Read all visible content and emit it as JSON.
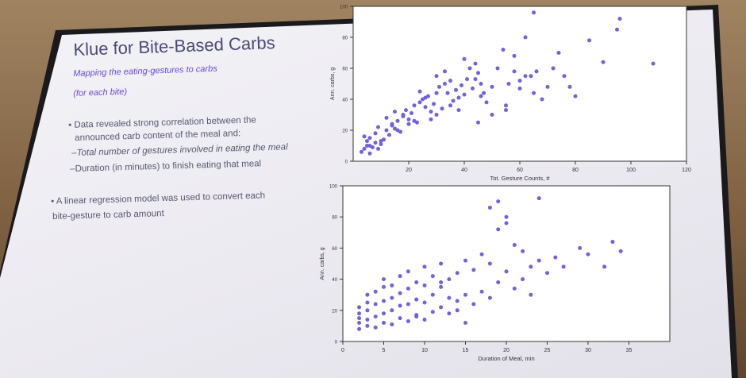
{
  "slide": {
    "title": "Klue for Bite-Based Carbs",
    "subtitle_line1": "Mapping the eating-gestures to carbs",
    "subtitle_line2": "(for each bite)",
    "bullets": [
      "• Data revealed strong correlation between the",
      "announced carb content of the meal and:",
      "–Total number of gestures involved in eating the meal",
      "–Duration (in minutes) to finish eating that meal"
    ],
    "bullet2": [
      "• A linear regression model was used to convert each",
      "bite-gesture to carb amount"
    ]
  },
  "chart_data": [
    {
      "type": "scatter",
      "xlabel": "Tot. Gesture Counts, #",
      "ylabel": "Ann. carbs, g",
      "xlim": [
        0,
        120
      ],
      "ylim": [
        0,
        100
      ],
      "x_ticks": [
        20,
        40,
        60,
        80,
        100,
        120
      ],
      "y_ticks": [
        0,
        20,
        40,
        60,
        80,
        100
      ],
      "color": "#6f63dd",
      "x": [
        3,
        4,
        5,
        6,
        5,
        7,
        8,
        6,
        9,
        10,
        4,
        8,
        11,
        12,
        6,
        9,
        13,
        14,
        10,
        15,
        16,
        12,
        17,
        18,
        14,
        19,
        20,
        22,
        16,
        21,
        23,
        24,
        18,
        25,
        26,
        20,
        27,
        28,
        24,
        29,
        30,
        31,
        26,
        32,
        33,
        34,
        28,
        35,
        36,
        30,
        37,
        38,
        33,
        39,
        40,
        42,
        35,
        41,
        43,
        44,
        38,
        45,
        46,
        40,
        47,
        48,
        50,
        44,
        52,
        54,
        46,
        55,
        56,
        58,
        50,
        60,
        62,
        55,
        64,
        65,
        68,
        60,
        70,
        72,
        66,
        74,
        76,
        80,
        85,
        90,
        95,
        96,
        108,
        65,
        78,
        62,
        15,
        22,
        30,
        45,
        58
      ],
      "y": [
        6,
        8,
        10,
        5,
        13,
        9,
        12,
        15,
        8,
        11,
        16,
        18,
        14,
        20,
        10,
        22,
        17,
        24,
        13,
        21,
        26,
        28,
        19,
        30,
        23,
        33,
        27,
        36,
        20,
        31,
        25,
        38,
        29,
        40,
        35,
        24,
        42,
        32,
        45,
        37,
        30,
        48,
        41,
        34,
        50,
        44,
        27,
        52,
        39,
        55,
        46,
        33,
        58,
        49,
        43,
        60,
        36,
        53,
        47,
        63,
        41,
        57,
        50,
        66,
        44,
        38,
        48,
        53,
        60,
        72,
        42,
        36,
        50,
        68,
        30,
        47,
        80,
        33,
        55,
        44,
        40,
        52,
        48,
        60,
        58,
        70,
        55,
        42,
        78,
        64,
        85,
        92,
        63,
        96,
        48,
        55,
        32,
        26,
        44,
        25,
        58
      ]
    },
    {
      "type": "scatter",
      "xlabel": "Duration of Meal, min",
      "ylabel": "Ann. carbs, g",
      "xlim": [
        0,
        40
      ],
      "ylim": [
        0,
        100
      ],
      "x_ticks": [
        0,
        5,
        10,
        15,
        20,
        25,
        30,
        35
      ],
      "y_ticks": [
        0,
        20,
        40,
        60,
        80,
        100
      ],
      "color": "#6f63dd",
      "x": [
        2,
        2,
        2,
        2,
        2,
        3,
        3,
        3,
        3,
        3,
        4,
        4,
        4,
        4,
        5,
        5,
        5,
        5,
        5,
        6,
        6,
        6,
        6,
        7,
        7,
        7,
        7,
        8,
        8,
        8,
        8,
        9,
        9,
        9,
        10,
        10,
        10,
        10,
        11,
        11,
        11,
        12,
        12,
        12,
        13,
        13,
        13,
        14,
        14,
        15,
        15,
        15,
        16,
        16,
        17,
        17,
        18,
        18,
        19,
        19,
        20,
        20,
        21,
        21,
        22,
        22,
        23,
        23,
        24,
        25,
        26,
        27,
        29,
        30,
        32,
        33,
        34,
        18,
        19,
        20,
        24,
        14,
        12,
        9
      ],
      "y": [
        8,
        12,
        15,
        18,
        22,
        10,
        14,
        20,
        25,
        30,
        9,
        16,
        24,
        32,
        12,
        18,
        26,
        35,
        40,
        11,
        20,
        28,
        36,
        15,
        23,
        31,
        42,
        13,
        24,
        34,
        45,
        17,
        27,
        38,
        14,
        25,
        36,
        48,
        19,
        30,
        42,
        22,
        35,
        50,
        18,
        28,
        40,
        26,
        44,
        12,
        30,
        52,
        24,
        46,
        32,
        56,
        28,
        50,
        38,
        72,
        45,
        80,
        34,
        62,
        40,
        58,
        48,
        30,
        52,
        44,
        54,
        48,
        60,
        56,
        48,
        64,
        58,
        86,
        90,
        76,
        92,
        20,
        38,
        16
      ]
    }
  ]
}
